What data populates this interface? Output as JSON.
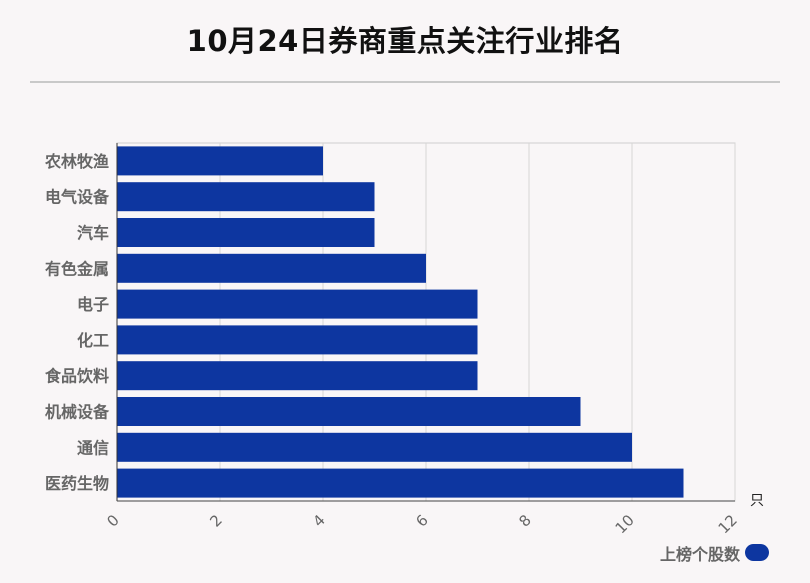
{
  "title": "10月24日券商重点关注行业排名",
  "chart_data": {
    "type": "bar",
    "orientation": "horizontal",
    "categories": [
      "农林牧渔",
      "电气设备",
      "汽车",
      "有色金属",
      "电子",
      "化工",
      "食品饮料",
      "机械设备",
      "通信",
      "医药生物"
    ],
    "series": [
      {
        "name": "上榜个股数",
        "values": [
          4,
          5,
          5,
          6,
          7,
          7,
          7,
          9,
          10,
          11
        ]
      }
    ],
    "xlabel": "只",
    "ylabel": "",
    "xlim": [
      0,
      12
    ],
    "xticks": [
      0,
      2,
      4,
      6,
      8,
      10,
      12
    ],
    "grid": true,
    "legend_position": "bottom-right",
    "bar_color": "#0d36a0"
  }
}
